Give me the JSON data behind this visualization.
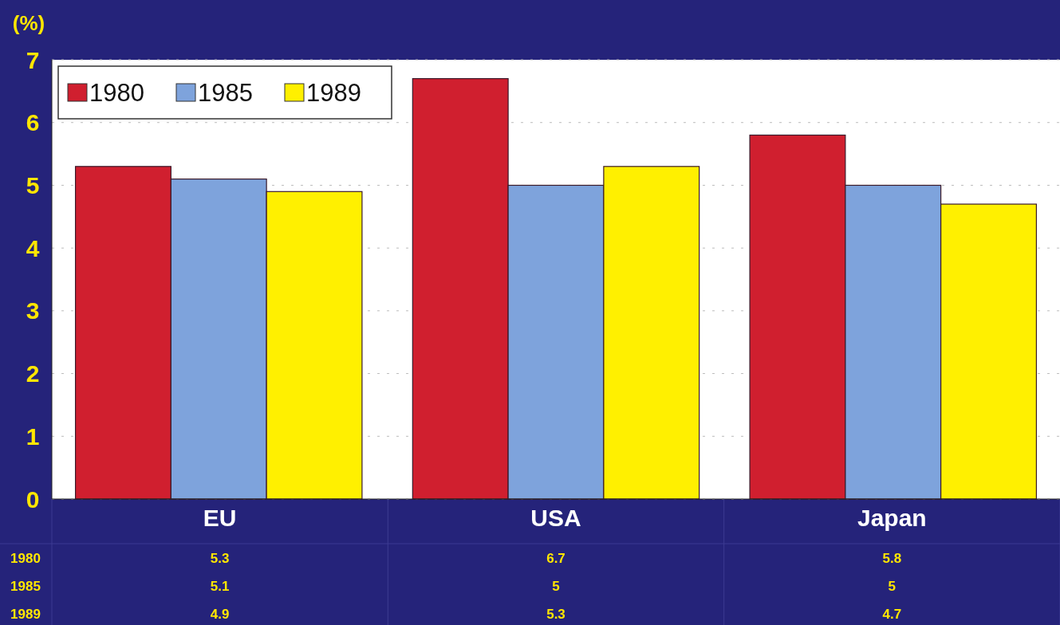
{
  "chart_data": {
    "type": "bar",
    "ylabel": "(%)",
    "categories": [
      "EU",
      "USA",
      "Japan"
    ],
    "series": [
      {
        "name": "1980",
        "color": "#d01f2f",
        "values": [
          5.3,
          6.7,
          5.8
        ]
      },
      {
        "name": "1985",
        "color": "#7ea3dc",
        "values": [
          5.1,
          5,
          5
        ]
      },
      {
        "name": "1989",
        "color": "#fff000",
        "values": [
          4.9,
          5.3,
          4.7
        ]
      }
    ],
    "ylim": [
      0,
      7
    ],
    "yticks": [
      0,
      1,
      2,
      3,
      4,
      5,
      6,
      7
    ],
    "grid": "y",
    "legend": "top left",
    "data_labels": true
  }
}
